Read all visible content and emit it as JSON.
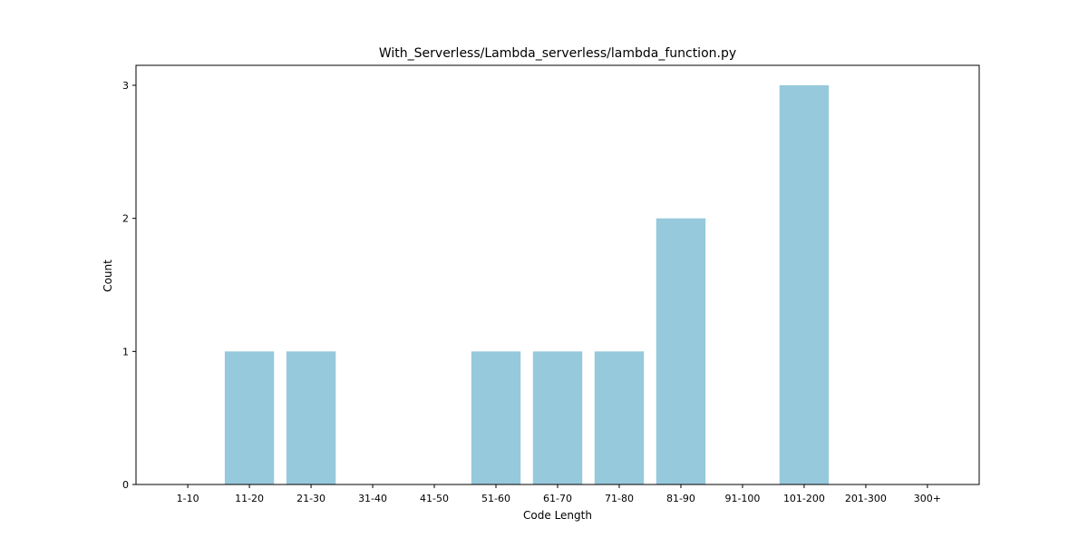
{
  "chart_data": {
    "type": "bar",
    "title": "With_Serverless/Lambda_serverless/lambda_function.py",
    "xlabel": "Code Length",
    "ylabel": "Count",
    "categories": [
      "1-10",
      "11-20",
      "21-30",
      "31-40",
      "41-50",
      "51-60",
      "61-70",
      "71-80",
      "81-90",
      "91-100",
      "101-200",
      "201-300",
      "300+"
    ],
    "values": [
      0,
      1,
      1,
      0,
      0,
      1,
      1,
      1,
      2,
      0,
      3,
      0,
      0
    ],
    "yticks": [
      0,
      1,
      2,
      3
    ],
    "ylim": [
      0,
      3.15
    ],
    "grid": false,
    "bar_color": "#96c9dc"
  }
}
